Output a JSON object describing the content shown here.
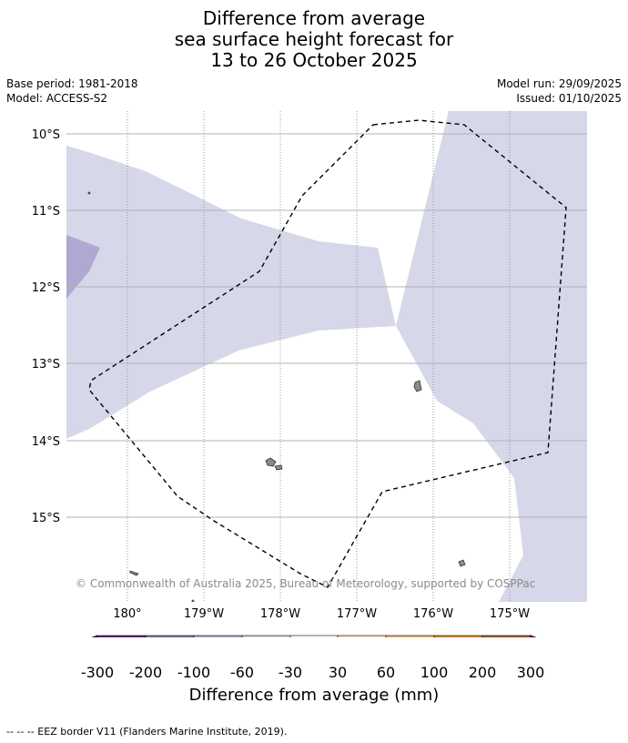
{
  "title_lines": [
    "Difference from average",
    "sea surface height forecast for",
    "13 to 26 October 2025"
  ],
  "base_period": "Base period: 1981-2018",
  "model": "Model: ACCESS-S2",
  "model_run": "Model run: 29/09/2025",
  "issued": "Issued: 01/10/2025",
  "copyright": "© Commonwealth of Australia 2025, Bureau of Meteorology, supported by COSPPac",
  "lat_labels": [
    "10°S",
    "11°S",
    "12°S",
    "13°S",
    "14°S",
    "15°S"
  ],
  "lon_labels": [
    "180°",
    "179°W",
    "178°W",
    "177°W",
    "176°W",
    "175°W"
  ],
  "colorbar": {
    "ticks": [
      "-300",
      "-200",
      "-100",
      "-60",
      "-30",
      "30",
      "60",
      "100",
      "200",
      "300"
    ],
    "colors": [
      "#3f0a5a",
      "#5c2388",
      "#7f6fae",
      "#afa8d0",
      "#d6d7e8",
      "#ffffff",
      "#fde0b6",
      "#f8b561",
      "#e08114",
      "#b15507",
      "#7d3c0c"
    ],
    "title": "Difference from average (mm)"
  },
  "anomaly_colors": {
    "light": "#d6d7e8",
    "medium": "#afa8d0"
  },
  "footer": "--  --  -- EEZ border V11 (Flanders Marine Institute, 2019)."
}
